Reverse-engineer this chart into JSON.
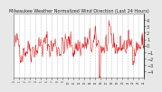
{
  "title": "Milwaukee Weather Normalized Wind Direction (Last 24 Hours)",
  "background_color": "#e8e8e8",
  "plot_bg_color": "#ffffff",
  "line_color": "#dd0000",
  "grid_color": "#aaaaaa",
  "grid_style": "--",
  "y_min": -5,
  "y_max": 5,
  "y_ticks": [
    -4,
    -3,
    -2,
    -1,
    0,
    1,
    2,
    3,
    4
  ],
  "num_points": 288,
  "seed": 42,
  "title_fontsize": 3.5,
  "tick_fontsize": 3.5
}
